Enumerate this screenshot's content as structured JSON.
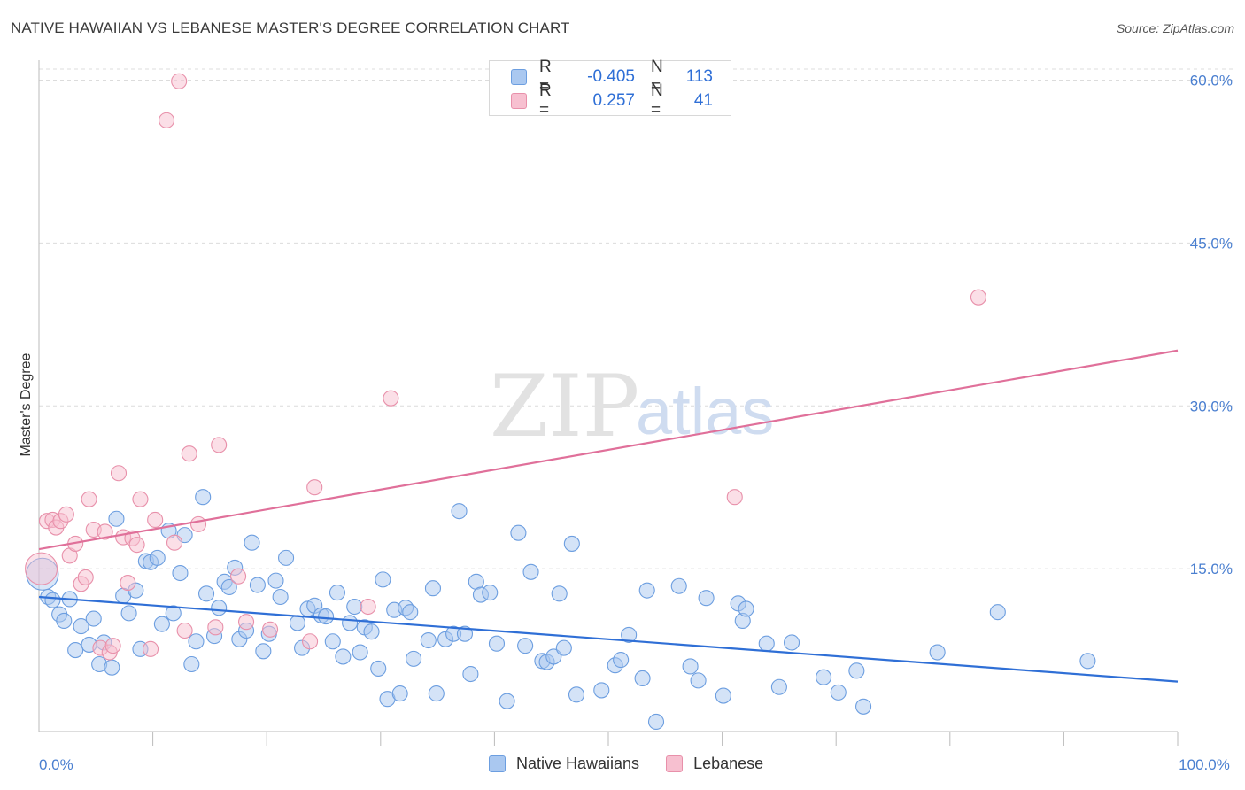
{
  "title": "NATIVE HAWAIIAN VS LEBANESE MASTER'S DEGREE CORRELATION CHART",
  "source": "Source: ZipAtlas.com",
  "watermark": {
    "zip": "ZIP",
    "atlas": "atlas"
  },
  "legend": {
    "rows": [
      {
        "r_label": "R =",
        "r_value": "-0.405",
        "n_label": "N =",
        "n_value": "113",
        "color": "#aac8f0",
        "border": "#6c9ee0"
      },
      {
        "r_label": "R =",
        "r_value": "0.257",
        "n_label": "N =",
        "n_value": "41",
        "color": "#f7c0d0",
        "border": "#e890aa"
      }
    ]
  },
  "bottom_legend": [
    {
      "label": "Native Hawaiians",
      "color": "#aac8f0",
      "border": "#6c9ee0"
    },
    {
      "label": "Lebanese",
      "color": "#f7c0d0",
      "border": "#e890aa"
    }
  ],
  "chart_data": {
    "type": "scatter",
    "title": "NATIVE HAWAIIAN VS LEBANESE MASTER'S DEGREE CORRELATION CHART",
    "xlabel": "",
    "ylabel": "Master's Degree",
    "xlim": [
      0,
      100
    ],
    "ylim": [
      0,
      62
    ],
    "y_ticks": [
      {
        "value": 15,
        "label": "15.0%"
      },
      {
        "value": 30,
        "label": "30.0%"
      },
      {
        "value": 45,
        "label": "45.0%"
      },
      {
        "value": 60,
        "label": "60.0%"
      }
    ],
    "x_tick_labels": [
      {
        "value": 0,
        "label": "0.0%"
      },
      {
        "value": 100,
        "label": "100.0%"
      }
    ],
    "x_minor_ticks": [
      10,
      20,
      30,
      40,
      50,
      60,
      70,
      80,
      90,
      100
    ],
    "grid": true,
    "series": [
      {
        "name": "Native Hawaiians",
        "color": "#6c9ee0",
        "fill": "#aac8f0",
        "trend": {
          "x": [
            0,
            100
          ],
          "y": [
            12.4,
            4.6
          ],
          "color": "#2f6fd6"
        },
        "points": [
          [
            0.3,
            14.5
          ],
          [
            0.8,
            12.4
          ],
          [
            1.2,
            12.1
          ],
          [
            1.8,
            10.8
          ],
          [
            2.2,
            10.2
          ],
          [
            2.7,
            12.2
          ],
          [
            3.2,
            7.5
          ],
          [
            3.7,
            9.7
          ],
          [
            4.4,
            8.0
          ],
          [
            4.8,
            10.4
          ],
          [
            5.3,
            6.2
          ],
          [
            5.7,
            8.2
          ],
          [
            6.4,
            5.9
          ],
          [
            6.8,
            19.6
          ],
          [
            7.4,
            12.5
          ],
          [
            7.9,
            10.9
          ],
          [
            8.5,
            13.0
          ],
          [
            8.9,
            7.6
          ],
          [
            9.4,
            15.7
          ],
          [
            9.8,
            15.6
          ],
          [
            10.4,
            16.0
          ],
          [
            10.8,
            9.9
          ],
          [
            11.4,
            18.5
          ],
          [
            11.8,
            10.9
          ],
          [
            12.4,
            14.6
          ],
          [
            12.8,
            18.1
          ],
          [
            13.4,
            6.2
          ],
          [
            13.8,
            8.3
          ],
          [
            14.4,
            21.6
          ],
          [
            14.7,
            12.7
          ],
          [
            15.4,
            8.8
          ],
          [
            15.8,
            11.4
          ],
          [
            16.3,
            13.8
          ],
          [
            16.7,
            13.3
          ],
          [
            17.2,
            15.1
          ],
          [
            17.6,
            8.5
          ],
          [
            18.2,
            9.3
          ],
          [
            18.7,
            17.4
          ],
          [
            19.2,
            13.5
          ],
          [
            19.7,
            7.4
          ],
          [
            20.2,
            9.0
          ],
          [
            20.8,
            13.9
          ],
          [
            21.2,
            12.4
          ],
          [
            21.7,
            16.0
          ],
          [
            22.7,
            10.0
          ],
          [
            23.1,
            7.7
          ],
          [
            23.6,
            11.3
          ],
          [
            24.2,
            11.6
          ],
          [
            24.8,
            10.7
          ],
          [
            25.2,
            10.6
          ],
          [
            25.8,
            8.3
          ],
          [
            26.2,
            12.8
          ],
          [
            26.7,
            6.9
          ],
          [
            27.3,
            10.0
          ],
          [
            27.7,
            11.5
          ],
          [
            28.2,
            7.3
          ],
          [
            28.6,
            9.6
          ],
          [
            29.2,
            9.2
          ],
          [
            29.8,
            5.8
          ],
          [
            30.2,
            14.0
          ],
          [
            30.6,
            3.0
          ],
          [
            31.2,
            11.2
          ],
          [
            31.7,
            3.5
          ],
          [
            32.2,
            11.4
          ],
          [
            32.6,
            11.0
          ],
          [
            32.9,
            6.7
          ],
          [
            34.2,
            8.4
          ],
          [
            34.6,
            13.2
          ],
          [
            34.9,
            3.5
          ],
          [
            35.7,
            8.5
          ],
          [
            36.4,
            9.0
          ],
          [
            36.9,
            20.3
          ],
          [
            37.4,
            9.0
          ],
          [
            37.9,
            5.3
          ],
          [
            38.4,
            13.8
          ],
          [
            38.8,
            12.6
          ],
          [
            39.6,
            12.8
          ],
          [
            40.2,
            8.1
          ],
          [
            41.1,
            2.8
          ],
          [
            42.1,
            18.3
          ],
          [
            42.7,
            7.9
          ],
          [
            43.2,
            14.7
          ],
          [
            44.2,
            6.5
          ],
          [
            44.6,
            6.4
          ],
          [
            45.2,
            6.9
          ],
          [
            45.7,
            12.7
          ],
          [
            46.1,
            7.7
          ],
          [
            46.8,
            17.3
          ],
          [
            47.2,
            3.4
          ],
          [
            49.4,
            3.8
          ],
          [
            50.6,
            6.1
          ],
          [
            51.1,
            6.6
          ],
          [
            51.8,
            8.9
          ],
          [
            53.0,
            4.9
          ],
          [
            53.4,
            13.0
          ],
          [
            54.2,
            0.9
          ],
          [
            56.2,
            13.4
          ],
          [
            57.2,
            6.0
          ],
          [
            57.9,
            4.7
          ],
          [
            58.6,
            12.3
          ],
          [
            60.1,
            3.3
          ],
          [
            61.4,
            11.8
          ],
          [
            61.8,
            10.2
          ],
          [
            62.1,
            11.3
          ],
          [
            63.9,
            8.1
          ],
          [
            65.0,
            4.1
          ],
          [
            66.1,
            8.2
          ],
          [
            68.9,
            5.0
          ],
          [
            70.2,
            3.6
          ],
          [
            71.8,
            5.6
          ],
          [
            72.4,
            2.3
          ],
          [
            78.9,
            7.3
          ],
          [
            84.2,
            11.0
          ],
          [
            92.1,
            6.5
          ]
        ]
      },
      {
        "name": "Lebanese",
        "color": "#e890aa",
        "fill": "#f7c0d0",
        "trend": {
          "x": [
            0,
            100
          ],
          "y": [
            16.8,
            35.1
          ],
          "color": "#e0709a"
        },
        "points": [
          [
            0.2,
            15.0
          ],
          [
            0.7,
            19.4
          ],
          [
            1.2,
            19.5
          ],
          [
            1.5,
            18.8
          ],
          [
            1.9,
            19.4
          ],
          [
            2.4,
            20.0
          ],
          [
            2.7,
            16.2
          ],
          [
            3.2,
            17.3
          ],
          [
            3.7,
            13.6
          ],
          [
            4.1,
            14.2
          ],
          [
            4.4,
            21.4
          ],
          [
            4.8,
            18.6
          ],
          [
            5.4,
            7.7
          ],
          [
            5.8,
            18.4
          ],
          [
            6.2,
            7.3
          ],
          [
            6.5,
            7.9
          ],
          [
            7.0,
            23.8
          ],
          [
            7.4,
            17.9
          ],
          [
            7.8,
            13.7
          ],
          [
            8.2,
            17.8
          ],
          [
            8.6,
            17.2
          ],
          [
            8.9,
            21.4
          ],
          [
            9.8,
            7.6
          ],
          [
            10.2,
            19.5
          ],
          [
            11.2,
            56.3
          ],
          [
            11.9,
            17.4
          ],
          [
            12.3,
            59.9
          ],
          [
            12.8,
            9.3
          ],
          [
            13.2,
            25.6
          ],
          [
            14.0,
            19.1
          ],
          [
            15.5,
            9.6
          ],
          [
            15.8,
            26.4
          ],
          [
            17.5,
            14.3
          ],
          [
            18.2,
            10.1
          ],
          [
            20.3,
            9.4
          ],
          [
            23.8,
            8.3
          ],
          [
            24.2,
            22.5
          ],
          [
            28.9,
            11.5
          ],
          [
            30.9,
            30.7
          ],
          [
            61.1,
            21.6
          ],
          [
            82.5,
            40.0
          ]
        ]
      }
    ]
  }
}
